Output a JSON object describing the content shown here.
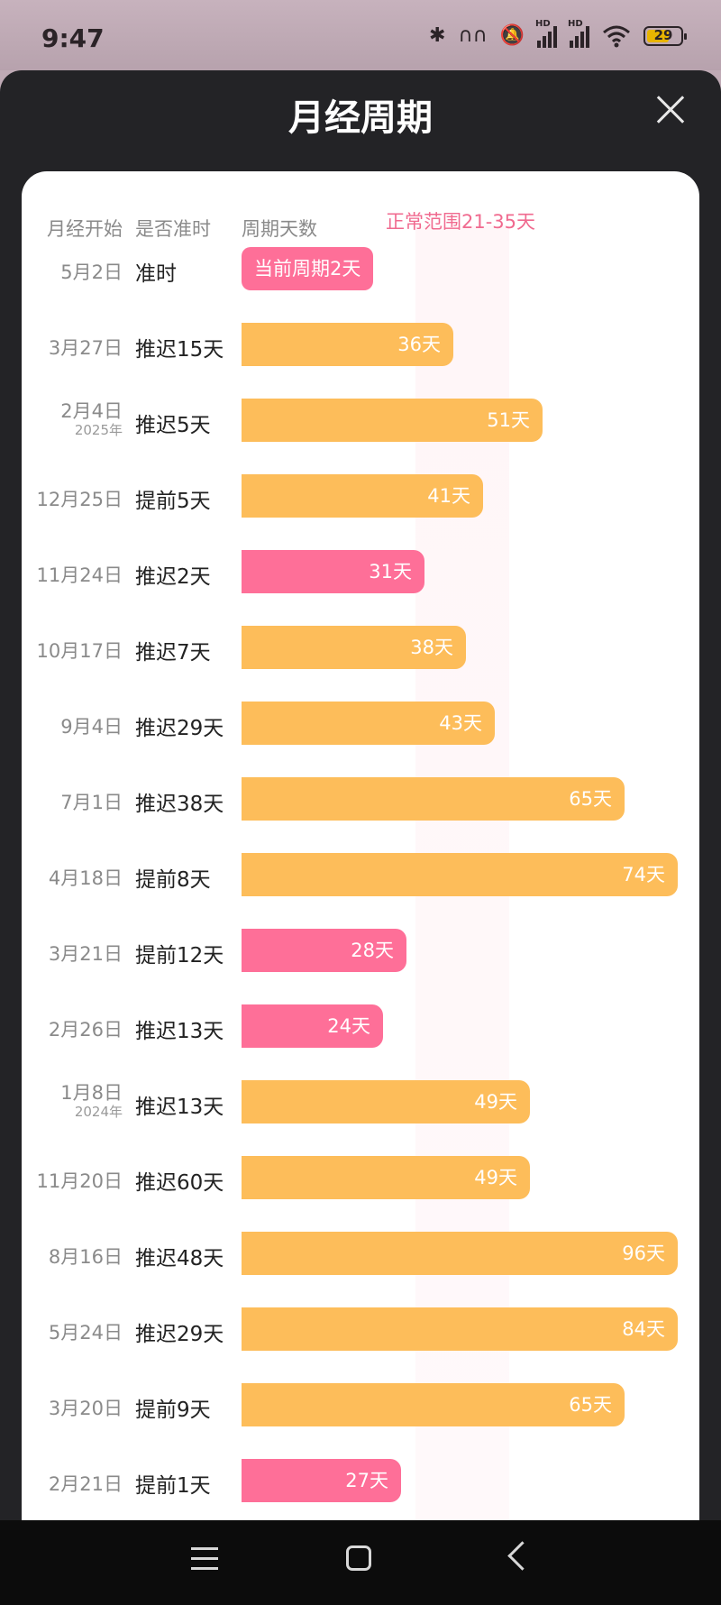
{
  "status_bar": {
    "time": "9:47",
    "battery": "29",
    "hd1": "HD",
    "hd2": "HD"
  },
  "sheet": {
    "title": "月经周期"
  },
  "table": {
    "headers": {
      "start": "月经开始",
      "on_time": "是否准时",
      "days": "周期天数"
    },
    "normal_range_label": "正常范围21-35天",
    "rows": [
      {
        "date": "5月2日",
        "year": "",
        "status": "准时",
        "bar_label": "当前周期2天",
        "days": 2,
        "color": "pink",
        "current": true
      },
      {
        "date": "3月27日",
        "year": "",
        "status": "推迟15天",
        "bar_label": "36天",
        "days": 36,
        "color": "orange"
      },
      {
        "date": "2月4日",
        "year": "2025年",
        "status": "推迟5天",
        "bar_label": "51天",
        "days": 51,
        "color": "orange"
      },
      {
        "date": "12月25日",
        "year": "",
        "status": "提前5天",
        "bar_label": "41天",
        "days": 41,
        "color": "orange"
      },
      {
        "date": "11月24日",
        "year": "",
        "status": "推迟2天",
        "bar_label": "31天",
        "days": 31,
        "color": "pink"
      },
      {
        "date": "10月17日",
        "year": "",
        "status": "推迟7天",
        "bar_label": "38天",
        "days": 38,
        "color": "orange"
      },
      {
        "date": "9月4日",
        "year": "",
        "status": "推迟29天",
        "bar_label": "43天",
        "days": 43,
        "color": "orange"
      },
      {
        "date": "7月1日",
        "year": "",
        "status": "推迟38天",
        "bar_label": "65天",
        "days": 65,
        "color": "orange"
      },
      {
        "date": "4月18日",
        "year": "",
        "status": "提前8天",
        "bar_label": "74天",
        "days": 74,
        "color": "orange"
      },
      {
        "date": "3月21日",
        "year": "",
        "status": "提前12天",
        "bar_label": "28天",
        "days": 28,
        "color": "pink"
      },
      {
        "date": "2月26日",
        "year": "",
        "status": "推迟13天",
        "bar_label": "24天",
        "days": 24,
        "color": "pink"
      },
      {
        "date": "1月8日",
        "year": "2024年",
        "status": "推迟13天",
        "bar_label": "49天",
        "days": 49,
        "color": "orange"
      },
      {
        "date": "11月20日",
        "year": "",
        "status": "推迟60天",
        "bar_label": "49天",
        "days": 49,
        "color": "orange"
      },
      {
        "date": "8月16日",
        "year": "",
        "status": "推迟48天",
        "bar_label": "96天",
        "days": 96,
        "color": "orange"
      },
      {
        "date": "5月24日",
        "year": "",
        "status": "推迟29天",
        "bar_label": "84天",
        "days": 84,
        "color": "orange"
      },
      {
        "date": "3月20日",
        "year": "",
        "status": "提前9天",
        "bar_label": "65天",
        "days": 65,
        "color": "orange"
      },
      {
        "date": "2月21日",
        "year": "",
        "status": "提前1天",
        "bar_label": "27天",
        "days": 27,
        "color": "pink"
      }
    ]
  },
  "colors": {
    "late": "#fdbd5a",
    "normal": "#fe6f98",
    "range_text": "#f06a8f"
  }
}
